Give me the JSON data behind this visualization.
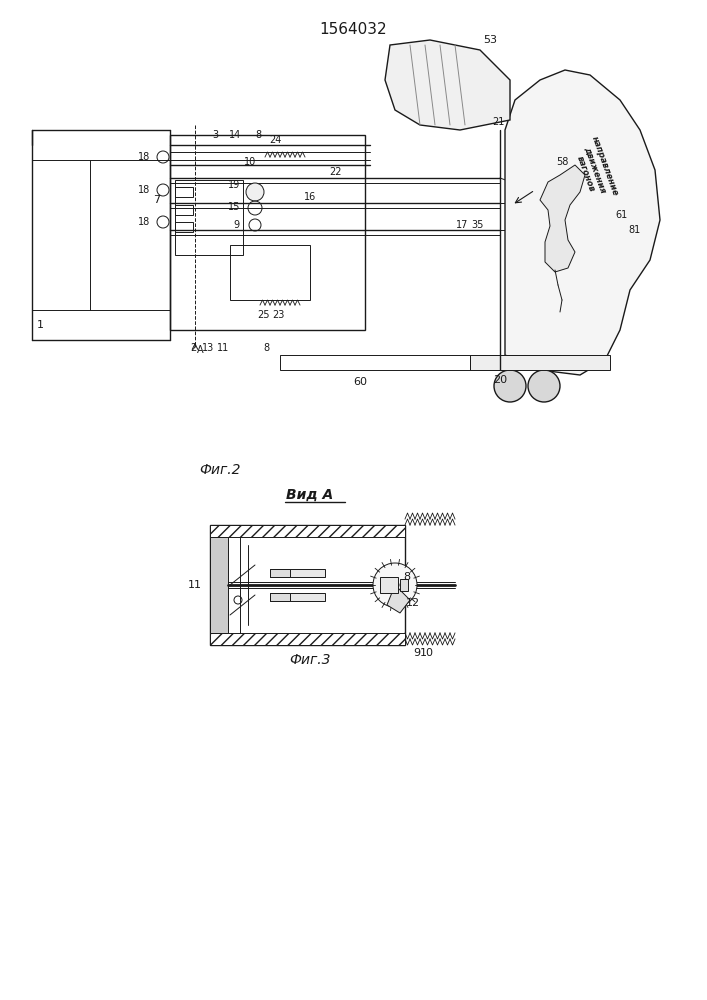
{
  "title": "1564032",
  "fig2_caption": "Фиг.2",
  "fig3_caption": "Фиг.3",
  "vid_a_label": "Вид A",
  "direction_text": "направление\nдвижения\nвагонов",
  "bg_color": "#ffffff",
  "lc": "#1a1a1a"
}
